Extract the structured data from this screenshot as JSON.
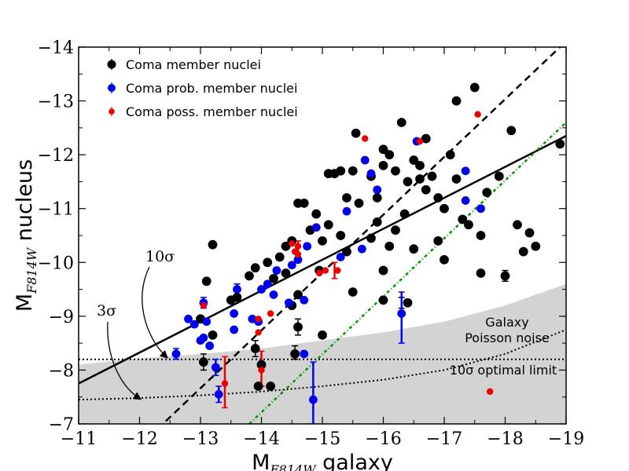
{
  "chart_data": {
    "type": "scatter",
    "xlabel_main": "M",
    "xlabel_sub": "F814W",
    "xlabel_rest": " galaxy",
    "ylabel_main": "M",
    "ylabel_sub": "F814W",
    "ylabel_rest": " nucleus",
    "xlim": [
      -11,
      -19
    ],
    "ylim": [
      -7,
      -14
    ],
    "x_ticks": [
      -11,
      -12,
      -13,
      -14,
      -15,
      -16,
      -17,
      -18,
      -19
    ],
    "y_ticks": [
      -7,
      -8,
      -9,
      -10,
      -11,
      -12,
      -13,
      -14
    ],
    "x_tick_labels": [
      "−11",
      "−12",
      "−13",
      "−14",
      "−15",
      "−16",
      "−17",
      "−18",
      "−19"
    ],
    "y_tick_labels": [
      "−7",
      "−8",
      "−9",
      "−10",
      "−11",
      "−12",
      "−13",
      "−14"
    ],
    "colors": {
      "member": "#000000",
      "probable": "#0000ee",
      "possible": "#ee0000",
      "shade": "#d3d3d3",
      "optimal_line": "#009900"
    },
    "legend": [
      {
        "label": "Coma member nuclei",
        "series": "member"
      },
      {
        "label": "Coma prob. member nuclei",
        "series": "probable"
      },
      {
        "label": "Coma poss. member nuclei",
        "series": "possible"
      }
    ],
    "lines": {
      "solid_fit": {
        "x": [
          -11,
          -19
        ],
        "y": [
          -7.75,
          -12.35
        ]
      },
      "dashed_one_to_one": {
        "x": [
          -12.15,
          -18.9
        ],
        "y": [
          -6.75,
          -14.0
        ]
      },
      "dotted_green": {
        "x": [
          -13.8,
          -19.0
        ],
        "y": [
          -7.0,
          -12.6
        ]
      },
      "dotted_3sigma_limit": {
        "y": -8.2
      }
    },
    "shaded_region": {
      "x": [
        -11,
        -12,
        -13,
        -14,
        -15,
        -16,
        -17,
        -18,
        -19
      ],
      "upper_y": [
        -8.1,
        -8.22,
        -8.3,
        -8.4,
        -8.55,
        -8.7,
        -8.9,
        -9.2,
        -9.6
      ]
    },
    "optimal_limit_curve": {
      "x": [
        -11,
        -12,
        -13,
        -14,
        -15,
        -16,
        -17,
        -18,
        -19
      ],
      "y": [
        -7.45,
        -7.48,
        -7.53,
        -7.6,
        -7.7,
        -7.82,
        -8.0,
        -8.3,
        -8.75
      ]
    },
    "annotations": {
      "ten_sigma": "10σ",
      "three_sigma": "3σ",
      "galaxy_noise_line1": "Galaxy",
      "galaxy_noise_line2": "Poisson noise",
      "optimal_limit": "10σ optimal limit"
    },
    "series": [
      {
        "name": "Coma member nuclei",
        "key": "member",
        "points": [
          {
            "x": -13.2,
            "y": -10.33
          },
          {
            "x": -13.1,
            "y": -9.65
          },
          {
            "x": -13.5,
            "y": -9.3
          },
          {
            "x": -13.6,
            "y": -9.35
          },
          {
            "x": -13.8,
            "y": -9.75
          },
          {
            "x": -13.9,
            "y": -9.9
          },
          {
            "x": -14.1,
            "y": -10.0
          },
          {
            "x": -14.2,
            "y": -9.7
          },
          {
            "x": -14.3,
            "y": -10.1
          },
          {
            "x": -14.4,
            "y": -9.8
          },
          {
            "x": -14.5,
            "y": -9.2
          },
          {
            "x": -14.6,
            "y": -9.4
          },
          {
            "x": -14.8,
            "y": -10.6
          },
          {
            "x": -14.5,
            "y": -10.4
          },
          {
            "x": -14.6,
            "y": -11.1
          },
          {
            "x": -14.7,
            "y": -11.1
          },
          {
            "x": -14.9,
            "y": -10.9
          },
          {
            "x": -15.1,
            "y": -11.65
          },
          {
            "x": -15.2,
            "y": -11.65
          },
          {
            "x": -15.3,
            "y": -11.7
          },
          {
            "x": -15.4,
            "y": -11.2
          },
          {
            "x": -15.5,
            "y": -11.7
          },
          {
            "x": -15.6,
            "y": -11.1
          },
          {
            "x": -15.8,
            "y": -11.6
          },
          {
            "x": -15.9,
            "y": -11.2
          },
          {
            "x": -16.0,
            "y": -12.1
          },
          {
            "x": -16.1,
            "y": -12.0
          },
          {
            "x": -16.2,
            "y": -11.7
          },
          {
            "x": -16.3,
            "y": -12.6
          },
          {
            "x": -16.4,
            "y": -11.5
          },
          {
            "x": -16.5,
            "y": -11.9
          },
          {
            "x": -16.6,
            "y": -11.8
          },
          {
            "x": -16.7,
            "y": -12.3
          },
          {
            "x": -16.8,
            "y": -11.6
          },
          {
            "x": -16.9,
            "y": -11.2
          },
          {
            "x": -17.0,
            "y": -11.0
          },
          {
            "x": -17.1,
            "y": -12.0
          },
          {
            "x": -17.2,
            "y": -13.0
          },
          {
            "x": -17.5,
            "y": -13.25
          },
          {
            "x": -17.3,
            "y": -10.8
          },
          {
            "x": -17.6,
            "y": -10.5
          },
          {
            "x": -17.7,
            "y": -11.3
          },
          {
            "x": -17.9,
            "y": -11.6
          },
          {
            "x": -18.1,
            "y": -12.45
          },
          {
            "x": -18.2,
            "y": -10.7
          },
          {
            "x": -18.3,
            "y": -10.2
          },
          {
            "x": -18.4,
            "y": -10.55
          },
          {
            "x": -18.5,
            "y": -10.3
          },
          {
            "x": -18.9,
            "y": -12.2
          },
          {
            "x": -15.55,
            "y": -12.4
          },
          {
            "x": -16.0,
            "y": -11.8
          },
          {
            "x": -15.9,
            "y": -10.75
          },
          {
            "x": -16.1,
            "y": -10.3
          },
          {
            "x": -16.2,
            "y": -10.6
          },
          {
            "x": -16.5,
            "y": -10.25
          },
          {
            "x": -16.9,
            "y": -10.4
          },
          {
            "x": -17.4,
            "y": -10.7
          },
          {
            "x": -17.6,
            "y": -9.8
          },
          {
            "x": -17.0,
            "y": -10.05
          },
          {
            "x": -16.0,
            "y": -9.85
          },
          {
            "x": -15.5,
            "y": -9.45
          },
          {
            "x": -16.0,
            "y": -9.3
          },
          {
            "x": -16.4,
            "y": -9.25
          },
          {
            "x": -16.35,
            "y": -10.9
          },
          {
            "x": -15.3,
            "y": -10.5
          },
          {
            "x": -15.4,
            "y": -10.2
          },
          {
            "x": -15.1,
            "y": -10.7
          },
          {
            "x": -15.0,
            "y": -10.4
          },
          {
            "x": -14.95,
            "y": -9.85
          },
          {
            "x": -15.0,
            "y": -8.65
          },
          {
            "x": -14.6,
            "y": -8.8
          },
          {
            "x": -14.55,
            "y": -8.3
          },
          {
            "x": -13.9,
            "y": -8.4
          },
          {
            "x": -14.0,
            "y": -8.1
          },
          {
            "x": -14.15,
            "y": -7.7
          },
          {
            "x": -13.95,
            "y": -7.7
          },
          {
            "x": -13.05,
            "y": -8.15
          },
          {
            "x": -13.2,
            "y": -8.65
          },
          {
            "x": -13.0,
            "y": -8.95
          },
          {
            "x": -18.0,
            "y": -9.75
          },
          {
            "x": -14.4,
            "y": -10.3
          },
          {
            "x": -15.8,
            "y": -10.45
          },
          {
            "x": -16.7,
            "y": -11.35
          },
          {
            "x": -16.6,
            "y": -11.55
          },
          {
            "x": -17.2,
            "y": -11.55
          }
        ]
      },
      {
        "name": "Coma prob. member nuclei",
        "key": "probable",
        "points": [
          {
            "x": -12.6,
            "y": -8.3
          },
          {
            "x": -12.8,
            "y": -8.95
          },
          {
            "x": -12.9,
            "y": -8.85
          },
          {
            "x": -13.0,
            "y": -8.55
          },
          {
            "x": -13.1,
            "y": -8.9
          },
          {
            "x": -13.05,
            "y": -8.6
          },
          {
            "x": -13.15,
            "y": -8.45
          },
          {
            "x": -13.05,
            "y": -9.25
          },
          {
            "x": -13.25,
            "y": -8.05
          },
          {
            "x": -13.3,
            "y": -7.55
          },
          {
            "x": -13.55,
            "y": -8.75
          },
          {
            "x": -13.55,
            "y": -9.05
          },
          {
            "x": -13.6,
            "y": -9.5
          },
          {
            "x": -13.85,
            "y": -8.95
          },
          {
            "x": -13.95,
            "y": -8.9
          },
          {
            "x": -14.0,
            "y": -9.5
          },
          {
            "x": -14.1,
            "y": -9.6
          },
          {
            "x": -14.25,
            "y": -9.85
          },
          {
            "x": -14.2,
            "y": -9.4
          },
          {
            "x": -14.5,
            "y": -9.95
          },
          {
            "x": -14.6,
            "y": -10.05
          },
          {
            "x": -14.75,
            "y": -10.3
          },
          {
            "x": -14.9,
            "y": -10.65
          },
          {
            "x": -14.7,
            "y": -9.3
          },
          {
            "x": -14.7,
            "y": -8.3
          },
          {
            "x": -14.85,
            "y": -7.45
          },
          {
            "x": -15.3,
            "y": -10.1
          },
          {
            "x": -15.4,
            "y": -10.95
          },
          {
            "x": -15.65,
            "y": -10.25
          },
          {
            "x": -15.8,
            "y": -11.65
          },
          {
            "x": -15.7,
            "y": -11.9
          },
          {
            "x": -15.9,
            "y": -11.35
          },
          {
            "x": -16.3,
            "y": -9.05
          },
          {
            "x": -16.55,
            "y": -12.25
          },
          {
            "x": -17.35,
            "y": -11.7
          },
          {
            "x": -17.35,
            "y": -11.15
          },
          {
            "x": -17.6,
            "y": -11.0
          },
          {
            "x": -14.45,
            "y": -9.25
          }
        ]
      },
      {
        "name": "Coma poss. member nuclei",
        "key": "possible",
        "points": [
          {
            "x": -13.4,
            "y": -7.75
          },
          {
            "x": -13.05,
            "y": -9.2
          },
          {
            "x": -13.95,
            "y": -8.95
          },
          {
            "x": -13.95,
            "y": -8.7
          },
          {
            "x": -14.0,
            "y": -8.0
          },
          {
            "x": -14.15,
            "y": -9.05
          },
          {
            "x": -14.6,
            "y": -10.3
          },
          {
            "x": -14.55,
            "y": -10.2
          },
          {
            "x": -14.6,
            "y": -10.15
          },
          {
            "x": -14.95,
            "y": -9.8
          },
          {
            "x": -15.05,
            "y": -9.85
          },
          {
            "x": -15.25,
            "y": -9.85
          },
          {
            "x": -15.7,
            "y": -12.3
          },
          {
            "x": -16.6,
            "y": -12.25
          },
          {
            "x": -17.55,
            "y": -12.75
          },
          {
            "x": -17.75,
            "y": -7.6
          },
          {
            "x": -14.5,
            "y": -10.35
          }
        ]
      }
    ],
    "error_bars": [
      {
        "series": "member",
        "x": -16.3,
        "y_low": -9.15,
        "y_high": -9.35
      },
      {
        "series": "member",
        "x": -18.0,
        "y_low": -9.65,
        "y_high": -9.85
      },
      {
        "series": "member",
        "x": -14.55,
        "y_low": -8.2,
        "y_high": -8.45
      },
      {
        "series": "member",
        "x": -13.9,
        "y_low": -8.25,
        "y_high": -8.55
      },
      {
        "series": "member",
        "x": -13.05,
        "y_low": -8.0,
        "y_high": -8.3
      },
      {
        "series": "member",
        "x": -14.6,
        "y_low": -8.65,
        "y_high": -8.95
      },
      {
        "series": "probable",
        "x": -16.3,
        "y_low": -8.5,
        "y_high": -9.45
      },
      {
        "series": "probable",
        "x": -14.85,
        "y_low": -7.0,
        "y_high": -8.15
      },
      {
        "series": "probable",
        "x": -13.3,
        "y_low": -7.4,
        "y_high": -7.7
      },
      {
        "series": "probable",
        "x": -13.25,
        "y_low": -7.9,
        "y_high": -8.2
      },
      {
        "series": "probable",
        "x": -12.6,
        "y_low": -8.2,
        "y_high": -8.4
      },
      {
        "series": "probable",
        "x": -13.05,
        "y_low": -9.15,
        "y_high": -9.35
      },
      {
        "series": "probable",
        "x": -13.6,
        "y_low": -9.4,
        "y_high": -9.6
      },
      {
        "series": "possible",
        "x": -13.4,
        "y_low": -7.3,
        "y_high": -8.25
      },
      {
        "series": "possible",
        "x": -14.0,
        "y_low": -7.7,
        "y_high": -8.35
      },
      {
        "series": "possible",
        "x": -15.2,
        "y_low": -9.7,
        "y_high": -10.0
      },
      {
        "series": "possible",
        "x": -14.6,
        "y_low": -10.1,
        "y_high": -10.4
      }
    ]
  }
}
